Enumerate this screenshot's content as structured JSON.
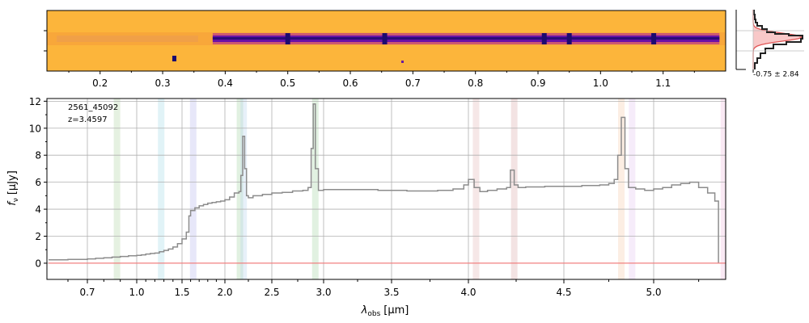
{
  "chart_data": [
    {
      "type": "heatmap",
      "panel": "2d-spectrum",
      "colormap": "plasma",
      "x_tick_labels": [
        "0.2",
        "0.3",
        "0.4",
        "0.5",
        "0.6",
        "0.7",
        "0.8",
        "0.9",
        "1.0",
        "1.1"
      ],
      "trace_start_x": 0.38,
      "trace_end_x": 1.19,
      "bright_knots_x": [
        0.5,
        0.655,
        0.91,
        0.95,
        1.085
      ]
    },
    {
      "type": "line",
      "panel": "cross-dispersion-profile",
      "annotation": "-0.75 ± 2.84"
    },
    {
      "type": "line",
      "panel": "1d-spectrum",
      "legend": [
        "2561_45092",
        "z=3.4597"
      ],
      "xlabel_main": "λ",
      "xlabel_sub": "obs",
      "xlabel_unit": "[μm]",
      "ylabel_main": "f",
      "ylabel_sub": "ν",
      "ylabel_unit": "[μJy]",
      "x_tick_labels": [
        "0.7",
        "1.0",
        "1.5",
        "2.0",
        "2.5",
        "3.0",
        "3.5",
        "4.0",
        "4.5",
        "5.0"
      ],
      "y_tick_labels": [
        "0",
        "2",
        "4",
        "6",
        "8",
        "10",
        "12"
      ],
      "ylim": [
        -1.2,
        12.2
      ],
      "grid": true,
      "series": [
        {
          "color": "#8c8c8c",
          "x": [
            0.6,
            0.65,
            0.7,
            0.75,
            0.8,
            0.85,
            0.9,
            0.95,
            1.0,
            1.05,
            1.1,
            1.15,
            1.2,
            1.25,
            1.3,
            1.35,
            1.4,
            1.45,
            1.5,
            1.55,
            1.58,
            1.6,
            1.65,
            1.7,
            1.75,
            1.8,
            1.85,
            1.9,
            1.95,
            2.0,
            2.05,
            2.1,
            2.15,
            2.17,
            2.19,
            2.21,
            2.23,
            2.25,
            2.3,
            2.4,
            2.5,
            2.6,
            2.7,
            2.8,
            2.85,
            2.88,
            2.9,
            2.92,
            2.95,
            3.0,
            3.2,
            3.4,
            3.6,
            3.8,
            3.9,
            3.97,
            4.0,
            4.03,
            4.06,
            4.1,
            4.15,
            4.2,
            4.22,
            4.24,
            4.26,
            4.3,
            4.4,
            4.5,
            4.6,
            4.7,
            4.75,
            4.78,
            4.8,
            4.82,
            4.84,
            4.86,
            4.9,
            4.95,
            5.0,
            5.05,
            5.1,
            5.15,
            5.2,
            5.25,
            5.3,
            5.34,
            5.36
          ],
          "y": [
            0.25,
            0.28,
            0.32,
            0.36,
            0.4,
            0.45,
            0.5,
            0.55,
            0.58,
            0.62,
            0.68,
            0.72,
            0.75,
            0.85,
            0.95,
            1.05,
            1.2,
            1.45,
            1.8,
            2.3,
            3.5,
            3.9,
            4.1,
            4.25,
            4.35,
            4.45,
            4.5,
            4.55,
            4.6,
            4.7,
            4.9,
            5.2,
            5.3,
            6.5,
            9.4,
            7.0,
            5.0,
            4.85,
            5.0,
            5.1,
            5.2,
            5.25,
            5.35,
            5.4,
            5.6,
            8.5,
            11.8,
            7.0,
            5.4,
            5.45,
            5.45,
            5.4,
            5.35,
            5.4,
            5.5,
            5.8,
            6.2,
            5.6,
            5.3,
            5.4,
            5.5,
            5.6,
            6.9,
            5.8,
            5.6,
            5.65,
            5.7,
            5.7,
            5.75,
            5.8,
            5.9,
            6.2,
            8.0,
            10.8,
            7.0,
            5.6,
            5.5,
            5.4,
            5.5,
            5.6,
            5.8,
            5.9,
            6.0,
            5.6,
            5.2,
            4.6,
            4.5
          ]
        },
        {
          "color": "#f08080",
          "x": [
            0.6,
            5.4
          ],
          "y": [
            0.0,
            0.0
          ]
        }
      ],
      "emission_bands": [
        {
          "x": 0.88,
          "color": "#b5d7a8"
        },
        {
          "x": 1.27,
          "color": "#a8dce9"
        },
        {
          "x": 1.63,
          "color": "#b9b9ef"
        },
        {
          "x": 2.16,
          "color": "#a8d8a8"
        },
        {
          "x": 2.2,
          "color": "#b9d5ef"
        },
        {
          "x": 2.92,
          "color": "#a8d8a8"
        },
        {
          "x": 4.04,
          "color": "#e5b9b9"
        },
        {
          "x": 4.24,
          "color": "#dcb0b0"
        },
        {
          "x": 4.82,
          "color": "#f5cdb0"
        },
        {
          "x": 4.88,
          "color": "#e6c8f0"
        },
        {
          "x": 5.39,
          "color": "#f0c0e0"
        }
      ]
    }
  ]
}
